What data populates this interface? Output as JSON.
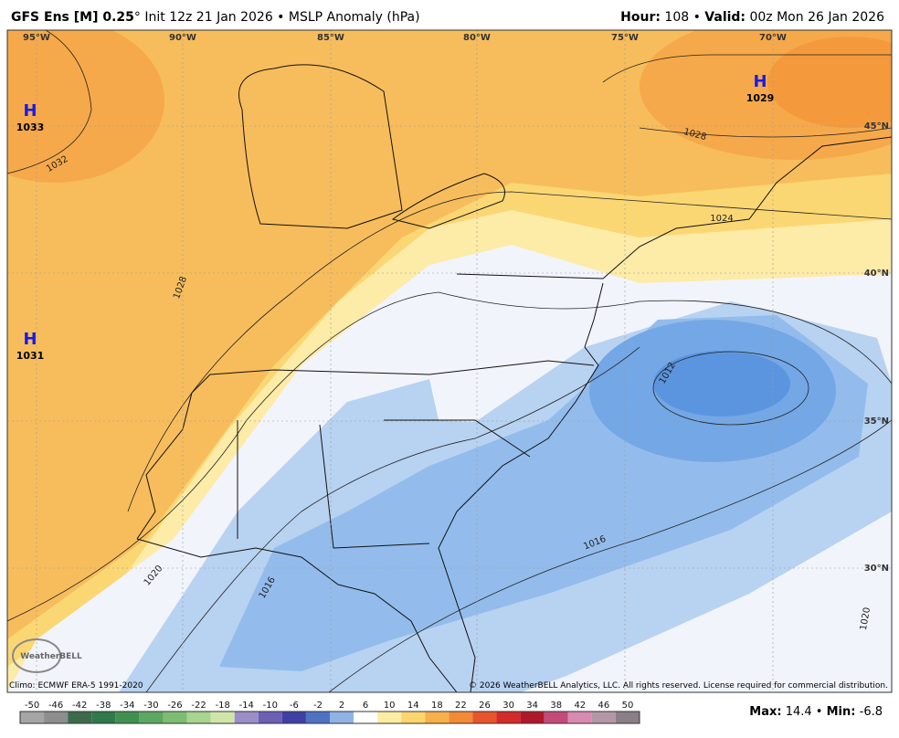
{
  "header": {
    "title_bold": "GFS Ens [M] 0.25",
    "title_rest": "° Init 12z 21 Jan 2026 • MSLP Anomaly (hPa)",
    "hour_label": "Hour:",
    "hour_value": "108 •",
    "valid_label": "Valid:",
    "valid_value": "00z Mon 26 Jan 2026"
  },
  "map": {
    "lon_labels": [
      "95°W",
      "90°W",
      "85°W",
      "80°W",
      "75°W",
      "70°W"
    ],
    "lat_labels": [
      "45°N",
      "40°N",
      "35°N",
      "30°N"
    ],
    "highs": [
      {
        "symbol": "H",
        "value": "1033"
      },
      {
        "symbol": "H",
        "value": "1029"
      },
      {
        "symbol": "H",
        "value": "1031"
      }
    ],
    "contour_labels": [
      "1032",
      "1028",
      "1028",
      "1024",
      "1020",
      "1020",
      "1016",
      "1016",
      "1012"
    ],
    "logo": "WeatherBELL"
  },
  "footer": {
    "climo": "Climo: ECMWF ERA-5 1991-2020",
    "copyright": "© 2026 WeatherBELL Analytics, LLC. All rights reserved. License required for commercial distribution.",
    "colorbar_ticks": [
      "-50",
      "-46",
      "-42",
      "-38",
      "-34",
      "-30",
      "-26",
      "-22",
      "-18",
      "-14",
      "-10",
      "-6",
      "-2",
      "2",
      "6",
      "10",
      "14",
      "18",
      "22",
      "26",
      "30",
      "34",
      "38",
      "42",
      "46",
      "50"
    ],
    "max_label": "Max:",
    "max_value": "14.4 •",
    "min_label": "Min:",
    "min_value": "-6.8"
  }
}
